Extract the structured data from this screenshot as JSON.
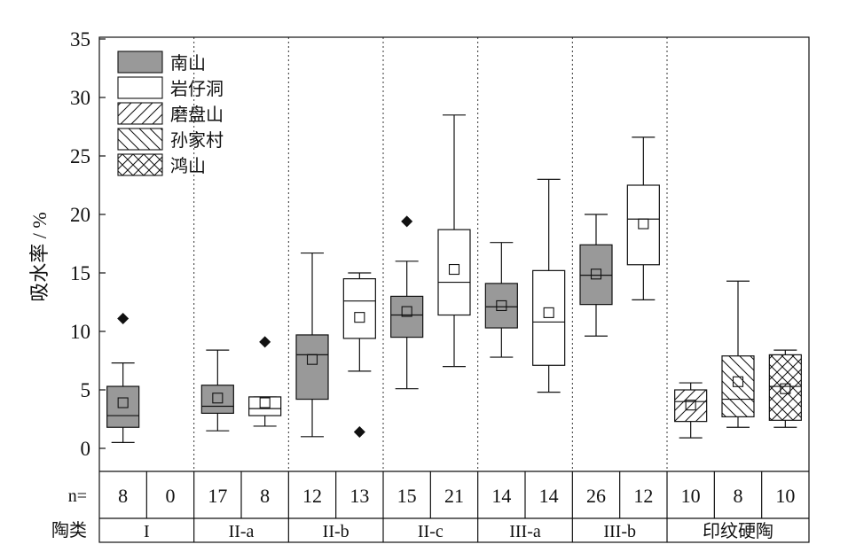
{
  "chart_data": {
    "type": "boxplot",
    "ylabel": "吸水率 / %",
    "ylim": [
      0,
      35
    ],
    "yticks": [
      0,
      5,
      10,
      15,
      20,
      25,
      30,
      35
    ],
    "legend": {
      "placement": "top-left",
      "entries": [
        {
          "name": "南山",
          "pattern": "solid-gray"
        },
        {
          "name": "岩仔洞",
          "pattern": "white"
        },
        {
          "name": "磨盘山",
          "pattern": "forward-hatch"
        },
        {
          "name": "孙家村",
          "pattern": "back-hatch"
        },
        {
          "name": "鸿山",
          "pattern": "cross-hatch"
        }
      ]
    },
    "n_label": "n=",
    "category_label": "陶类",
    "groups": [
      {
        "name": "I",
        "slots": [
          {
            "site": "南山",
            "n": "8",
            "whisker_low": 0.5,
            "q1": 1.8,
            "median": 2.8,
            "q3": 5.3,
            "whisker_high": 7.3,
            "mean": 3.9,
            "outliers": [
              11.1
            ]
          },
          {
            "site": "岩仔洞",
            "n": "0",
            "empty": true
          }
        ]
      },
      {
        "name": "II-a",
        "slots": [
          {
            "site": "南山",
            "n": "17",
            "whisker_low": 1.5,
            "q1": 3.0,
            "median": 3.6,
            "q3": 5.4,
            "whisker_high": 8.4,
            "mean": 4.3,
            "outliers": []
          },
          {
            "site": "岩仔洞",
            "n": "8",
            "whisker_low": 1.9,
            "q1": 2.8,
            "median": 3.4,
            "q3": 4.4,
            "whisker_high": 4.4,
            "mean": 3.9,
            "outliers": [
              9.1
            ]
          }
        ]
      },
      {
        "name": "II-b",
        "slots": [
          {
            "site": "南山",
            "n": "12",
            "whisker_low": 1.0,
            "q1": 4.2,
            "median": 8.0,
            "q3": 9.7,
            "whisker_high": 16.7,
            "mean": 7.6,
            "outliers": []
          },
          {
            "site": "岩仔洞",
            "n": "13",
            "whisker_low": 6.6,
            "q1": 9.4,
            "median": 12.6,
            "q3": 14.5,
            "whisker_high": 15.0,
            "mean": 11.2,
            "outliers": [
              1.4
            ]
          }
        ]
      },
      {
        "name": "II-c",
        "slots": [
          {
            "site": "南山",
            "n": "15",
            "whisker_low": 5.1,
            "q1": 9.5,
            "median": 11.4,
            "q3": 13.0,
            "whisker_high": 16.0,
            "mean": 11.7,
            "outliers": [
              19.4
            ]
          },
          {
            "site": "岩仔洞",
            "n": "21",
            "whisker_low": 7.0,
            "q1": 11.4,
            "median": 14.2,
            "q3": 18.7,
            "whisker_high": 28.5,
            "mean": 15.3,
            "outliers": []
          }
        ]
      },
      {
        "name": "III-a",
        "slots": [
          {
            "site": "南山",
            "n": "14",
            "whisker_low": 7.8,
            "q1": 10.3,
            "median": 12.1,
            "q3": 14.1,
            "whisker_high": 17.6,
            "mean": 12.2,
            "outliers": []
          },
          {
            "site": "岩仔洞",
            "n": "14",
            "whisker_low": 4.8,
            "q1": 7.1,
            "median": 10.8,
            "q3": 15.2,
            "whisker_high": 23.0,
            "mean": 11.6,
            "outliers": []
          }
        ]
      },
      {
        "name": "III-b",
        "slots": [
          {
            "site": "南山",
            "n": "26",
            "whisker_low": 9.6,
            "q1": 12.3,
            "median": 14.8,
            "q3": 17.4,
            "whisker_high": 20.0,
            "mean": 14.9,
            "outliers": []
          },
          {
            "site": "岩仔洞",
            "n": "12",
            "whisker_low": 12.7,
            "q1": 15.7,
            "median": 19.6,
            "q3": 22.5,
            "whisker_high": 26.6,
            "mean": 19.2,
            "outliers": []
          }
        ]
      },
      {
        "name": "印纹硬陶",
        "slots": [
          {
            "site": "磨盘山",
            "n": "10",
            "whisker_low": 0.9,
            "q1": 2.3,
            "median": 4.0,
            "q3": 5.0,
            "whisker_high": 5.6,
            "mean": 3.7,
            "outliers": []
          },
          {
            "site": "孙家村",
            "n": "8",
            "whisker_low": 1.8,
            "q1": 2.7,
            "median": 4.2,
            "q3": 7.9,
            "whisker_high": 14.3,
            "mean": 5.7,
            "outliers": []
          },
          {
            "site": "鸿山",
            "n": "10",
            "whisker_low": 1.8,
            "q1": 2.4,
            "median": 5.3,
            "q3": 8.0,
            "whisker_high": 8.4,
            "mean": 5.1,
            "outliers": []
          }
        ]
      }
    ]
  }
}
